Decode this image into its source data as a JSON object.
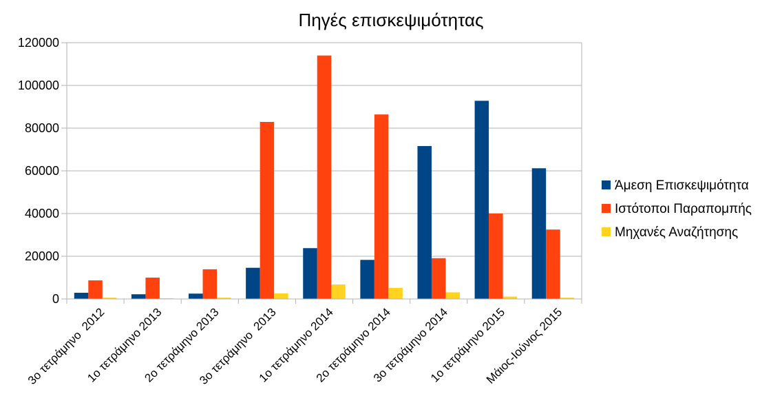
{
  "chart_data": {
    "type": "bar",
    "title": "Πηγές επισκεψιμότητας",
    "categories": [
      "3ο τετράμηνο  2012",
      "1ο τετράμηνο 2013",
      "2ο τετράμηνο 2013",
      "3ο τετράμηνο  2013",
      "1ο τετράμηνο 2014",
      "2ο τετράμηνο 2014",
      "3ο τετράμηνο 2014",
      "1ο τετράμηνο 2015",
      "Μάιος-Ιούνιος 2015"
    ],
    "series": [
      {
        "name": "Άμεση Επισκεψιμότητα",
        "color": "#004586",
        "values": [
          2900,
          2200,
          2500,
          14600,
          23800,
          18300,
          71600,
          92800,
          61200
        ]
      },
      {
        "name": "Ιστότοποι Παραπομπής",
        "color": "#ff420e",
        "values": [
          8700,
          10000,
          13900,
          82900,
          114000,
          86400,
          19100,
          40000,
          32500
        ]
      },
      {
        "name": "Μηχανές Αναζήτησης",
        "color": "#ffd320",
        "values": [
          600,
          300,
          600,
          2600,
          6800,
          5200,
          3100,
          1100,
          600
        ]
      }
    ],
    "ylim": [
      0,
      120000
    ],
    "yticks": [
      "0",
      "20000",
      "40000",
      "60000",
      "80000",
      "100000",
      "120000"
    ],
    "grid": true,
    "legend_position": "right"
  }
}
